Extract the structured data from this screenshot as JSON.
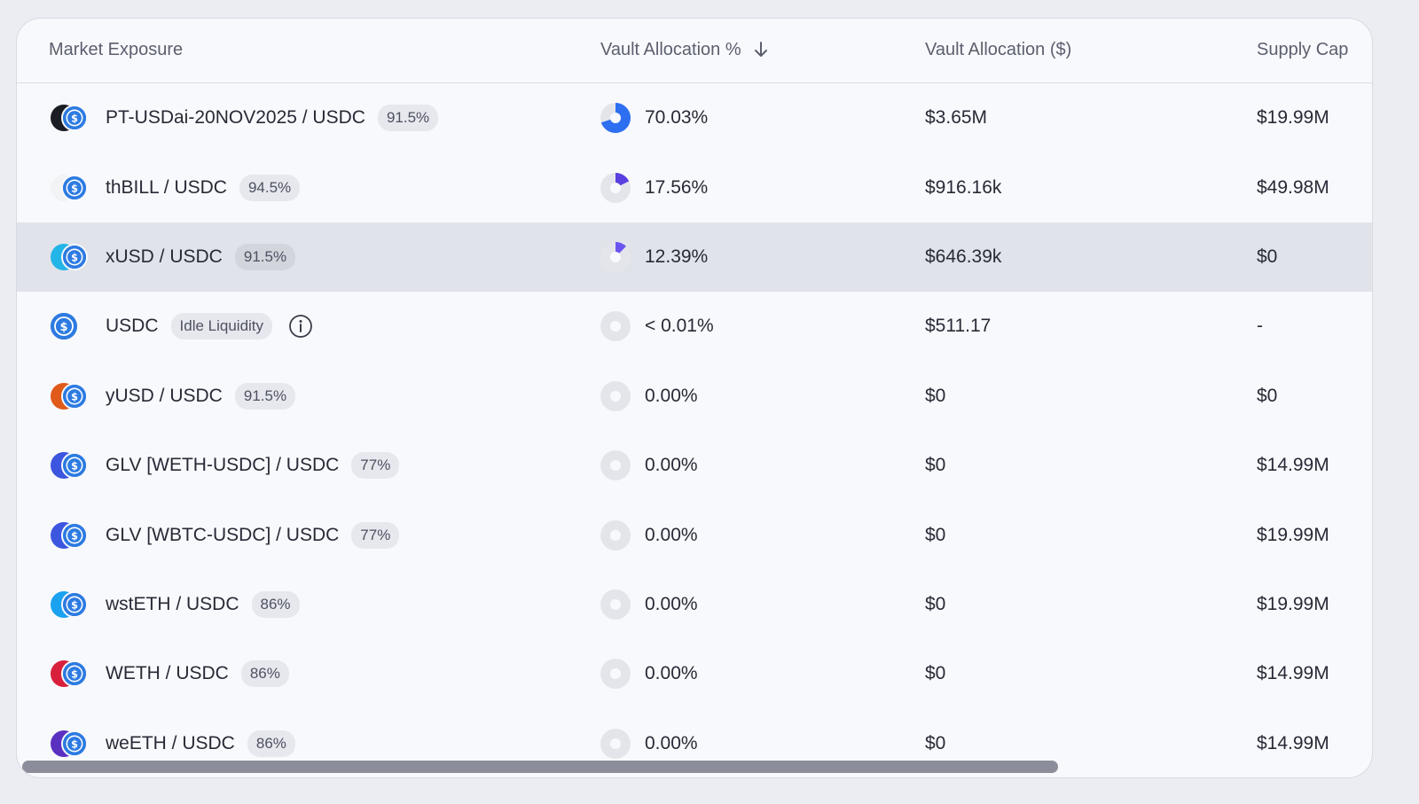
{
  "columns": {
    "market": "Market Exposure",
    "pct": "Vault Allocation %",
    "usd": "Vault Allocation ($)",
    "cap": "Supply Cap"
  },
  "rows": [
    {
      "market": "PT-USDai-20NOV2025 / USDC",
      "badge": "91.5%",
      "pct": "70.03%",
      "pct_value": 0.7003,
      "usd": "$3.65M",
      "cap": "$19.99M",
      "logo_color": "#1a1d24",
      "pie_color": "#2d6ff0"
    },
    {
      "market": "thBILL / USDC",
      "badge": "94.5%",
      "pct": "17.56%",
      "pct_value": 0.1756,
      "usd": "$916.16k",
      "cap": "$49.98M",
      "logo_color": "#f2f3f5",
      "pie_color": "#5a3fe0"
    },
    {
      "market": "xUSD / USDC",
      "badge": "91.5%",
      "pct": "12.39%",
      "pct_value": 0.1239,
      "usd": "$646.39k",
      "cap": "$0",
      "logo_color": "#24b5e8",
      "pie_color": "#6a55f0"
    },
    {
      "market": "USDC",
      "badge": "Idle Liquidity",
      "pct": "< 0.01%",
      "pct_value": 0.0,
      "usd": "$511.17",
      "cap": "-",
      "info": true
    },
    {
      "market": "yUSD / USDC",
      "badge": "91.5%",
      "pct": "0.00%",
      "pct_value": 0.0,
      "usd": "$0",
      "cap": "$0",
      "logo_color": "#e05a1a",
      "pie_color": "#2d6ff0"
    },
    {
      "market": "GLV [WETH-USDC] / USDC",
      "badge": "77%",
      "pct": "0.00%",
      "pct_value": 0.0,
      "usd": "$0",
      "cap": "$14.99M",
      "logo_color": "#3d56e0",
      "pie_color": "#2d6ff0"
    },
    {
      "market": "GLV [WBTC-USDC] / USDC",
      "badge": "77%",
      "pct": "0.00%",
      "pct_value": 0.0,
      "usd": "$0",
      "cap": "$19.99M",
      "logo_color": "#3d56e0",
      "pie_color": "#2d6ff0"
    },
    {
      "market": "wstETH / USDC",
      "badge": "86%",
      "pct": "0.00%",
      "pct_value": 0.0,
      "usd": "$0",
      "cap": "$19.99M",
      "logo_color": "#1aa2f0",
      "pie_color": "#2d6ff0"
    },
    {
      "market": "WETH / USDC",
      "badge": "86%",
      "pct": "0.00%",
      "pct_value": 0.0,
      "usd": "$0",
      "cap": "$14.99M",
      "logo_color": "#d8203c",
      "pie_color": "#2d6ff0"
    },
    {
      "market": "weETH / USDC",
      "badge": "86%",
      "pct": "0.00%",
      "pct_value": 0.0,
      "usd": "$0",
      "cap": "$14.99M",
      "logo_color": "#5a30c0",
      "pie_color": "#2d6ff0"
    }
  ],
  "highlight_row": 2,
  "colors": {
    "usdc": "#2d7be2",
    "pie_track": "#e4e5ea"
  },
  "icons": {
    "sort": "arrow-down-icon",
    "info": "info-circle-icon",
    "usdc": "usdc-logo-icon"
  }
}
